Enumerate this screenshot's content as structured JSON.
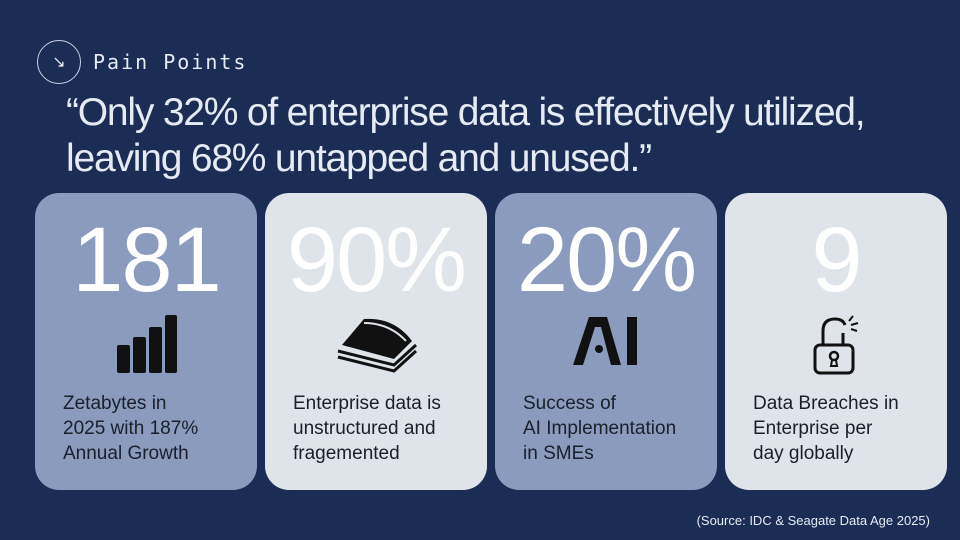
{
  "header": {
    "icon": "arrow-down-right-icon",
    "section": "Pain Points",
    "quote": "“Only 32% of enterprise data is effectively utilized, leaving 68% untapped and unused.”"
  },
  "cards": [
    {
      "value": "181",
      "icon": "bar-chart-icon",
      "desc": "Zetabytes in\n2025 with 187%\nAnnual Growth"
    },
    {
      "value": "90%",
      "icon": "stacked-papers-icon",
      "desc": "Enterprise data is\nunstructured and\nfragemented"
    },
    {
      "value": "20%",
      "icon": "ai-icon",
      "desc": "Success of\nAI Implementation\n in SMEs"
    },
    {
      "value": "9",
      "icon": "broken-lock-icon",
      "desc": "Data Breaches in\nEnterprise per\nday globally"
    }
  ],
  "source": "(Source: IDC & Seagate Data Age 2025)",
  "colors": {
    "background": "#1b2d55",
    "card_dark": "#8a9bbd",
    "card_light": "#dfe3ea"
  }
}
